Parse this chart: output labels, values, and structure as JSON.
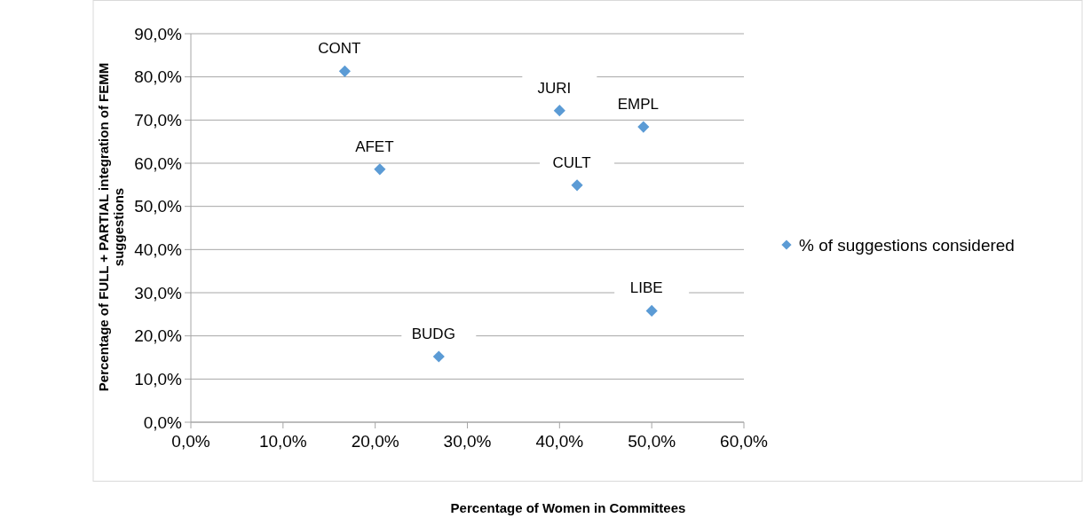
{
  "chart_data": {
    "type": "scatter",
    "xlabel": "Percentage of Women in Committees",
    "ylabel": "Percentage of FULL + PARTIAL integration of FEMM suggestions",
    "series": [
      {
        "name": "% of suggestions considered",
        "color": "#5b9bd5",
        "x": [
          16.7,
          20.5,
          26.9,
          40.0,
          49.1,
          41.9,
          50.0
        ],
        "values": [
          81.3,
          58.6,
          15.2,
          72.2,
          68.4,
          54.9,
          25.8
        ]
      }
    ],
    "annotations": [
      {
        "text": "CONT",
        "x": 16.7,
        "y": 81.3
      },
      {
        "text": "AFET",
        "x": 20.5,
        "y": 58.6
      },
      {
        "text": "BUDG",
        "x": 26.9,
        "y": 15.2
      },
      {
        "text": "JURI",
        "x": 40.0,
        "y": 72.2
      },
      {
        "text": "EMPL",
        "x": 49.1,
        "y": 68.4
      },
      {
        "text": "CULT",
        "x": 41.9,
        "y": 54.9
      },
      {
        "text": "LIBE",
        "x": 50.0,
        "y": 25.8
      }
    ],
    "xlim": [
      0,
      60
    ],
    "ylim": [
      0,
      90
    ],
    "xticks": [
      {
        "value": 0,
        "label": "0,0%"
      },
      {
        "value": 10,
        "label": "10,0%"
      },
      {
        "value": 20,
        "label": "20,0%"
      },
      {
        "value": 30,
        "label": "30,0%"
      },
      {
        "value": 40,
        "label": "40,0%"
      },
      {
        "value": 50,
        "label": "50,0%"
      },
      {
        "value": 60,
        "label": "60,0%"
      }
    ],
    "yticks": [
      {
        "value": 0,
        "label": "0,0%"
      },
      {
        "value": 10,
        "label": "10,0%"
      },
      {
        "value": 20,
        "label": "20,0%"
      },
      {
        "value": 30,
        "label": "30,0%"
      },
      {
        "value": 40,
        "label": "40,0%"
      },
      {
        "value": 50,
        "label": "50,0%"
      },
      {
        "value": 60,
        "label": "60,0%"
      },
      {
        "value": 70,
        "label": "70,0%"
      },
      {
        "value": 80,
        "label": "80,0%"
      },
      {
        "value": 90,
        "label": "90,0%"
      }
    ],
    "grid": "y",
    "legend": "right",
    "marker": "diamond"
  }
}
